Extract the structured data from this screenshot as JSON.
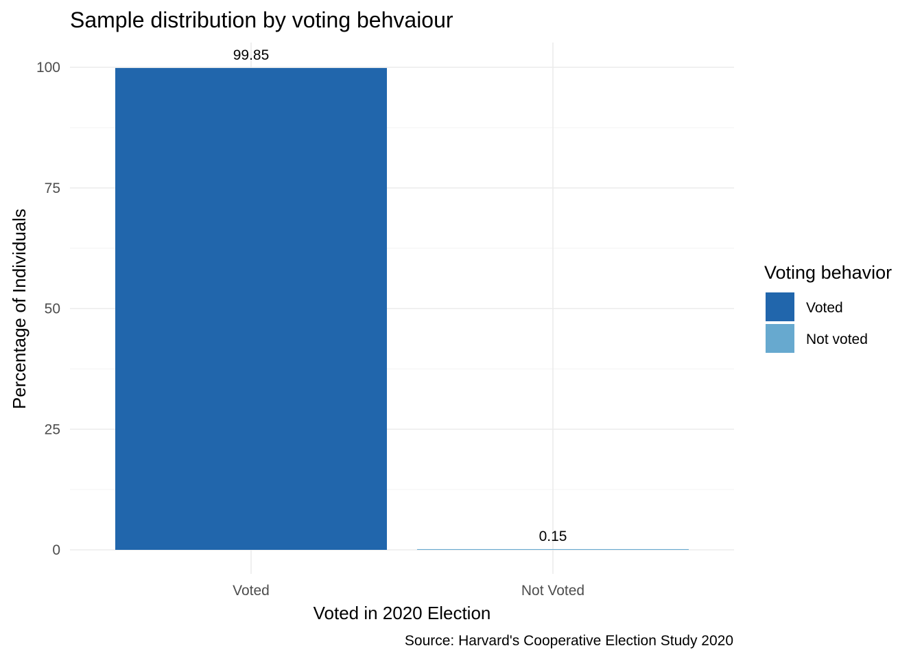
{
  "chart_data": {
    "type": "bar",
    "title": "Sample distribution by voting behvaiour",
    "xlabel": "Voted in 2020 Election",
    "ylabel": "Percentage of Individuals",
    "caption": "Source: Harvard's Cooperative Election Study 2020",
    "categories": [
      "Voted",
      "Not Voted"
    ],
    "values": [
      99.85,
      0.15
    ],
    "value_labels": [
      "99.85",
      "0.15"
    ],
    "colors": [
      "#2166ac",
      "#67a9cf"
    ],
    "ylim": [
      0,
      105
    ],
    "yticks": [
      0,
      25,
      50,
      75,
      100
    ],
    "grid": true,
    "legend": {
      "title": "Voting behavior",
      "position": "right",
      "entries": [
        {
          "label": "Voted",
          "color": "#2166ac"
        },
        {
          "label": "Not voted",
          "color": "#67a9cf"
        }
      ]
    }
  }
}
